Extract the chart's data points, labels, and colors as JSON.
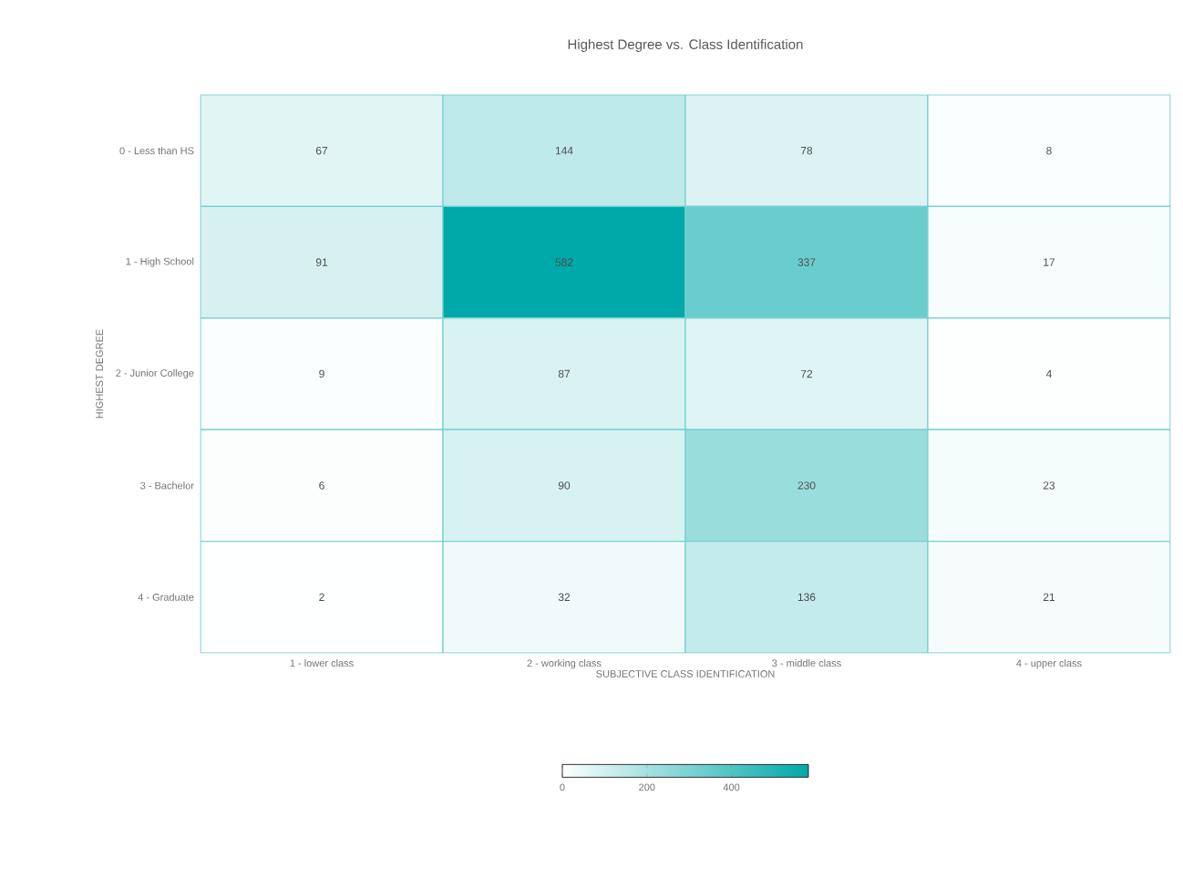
{
  "chart_data": {
    "type": "heatmap",
    "title": "Highest Degree vs. Class Identification",
    "xlabel": "SUBJECTIVE CLASS IDENTIFICATION",
    "ylabel": "HIGHEST DEGREE",
    "categories": [
      "1 - lower class",
      "2 - working class",
      "3 - middle class",
      "4 - upper class"
    ],
    "y_categories": [
      "0 - Less than HS",
      "1 - High School",
      "2 - Junior College",
      "3 - Bachelor",
      "4 - Graduate"
    ],
    "cells": [
      [
        67,
        144,
        78,
        8
      ],
      [
        91,
        582,
        337,
        17
      ],
      [
        9,
        87,
        72,
        4
      ],
      [
        6,
        90,
        230,
        23
      ],
      [
        2,
        32,
        136,
        21
      ]
    ],
    "clim": [
      0,
      582
    ],
    "cticks": [
      0,
      200,
      400
    ],
    "data_labels": true,
    "color": "#00a9a9"
  }
}
